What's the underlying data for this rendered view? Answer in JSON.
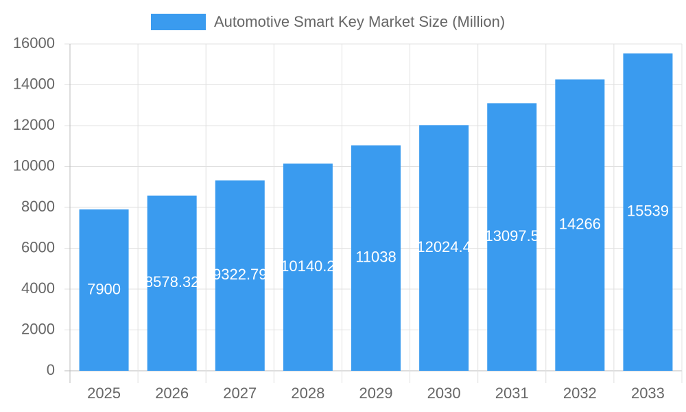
{
  "chart_data": {
    "type": "bar",
    "categories": [
      "2025",
      "2026",
      "2027",
      "2028",
      "2029",
      "2030",
      "2031",
      "2032",
      "2033"
    ],
    "series": [
      {
        "name": "Automotive Smart Key Market Size (Million)",
        "color": "#3a9bef",
        "values": [
          7900,
          8578.32,
          9322.79,
          10140.2,
          11038,
          12024.4,
          13097.5,
          14266,
          15539
        ]
      }
    ],
    "ylim": [
      0,
      16000
    ],
    "yticks": [
      0,
      2000,
      4000,
      6000,
      8000,
      10000,
      12000,
      14000,
      16000
    ],
    "grid": true,
    "legend": "top"
  }
}
